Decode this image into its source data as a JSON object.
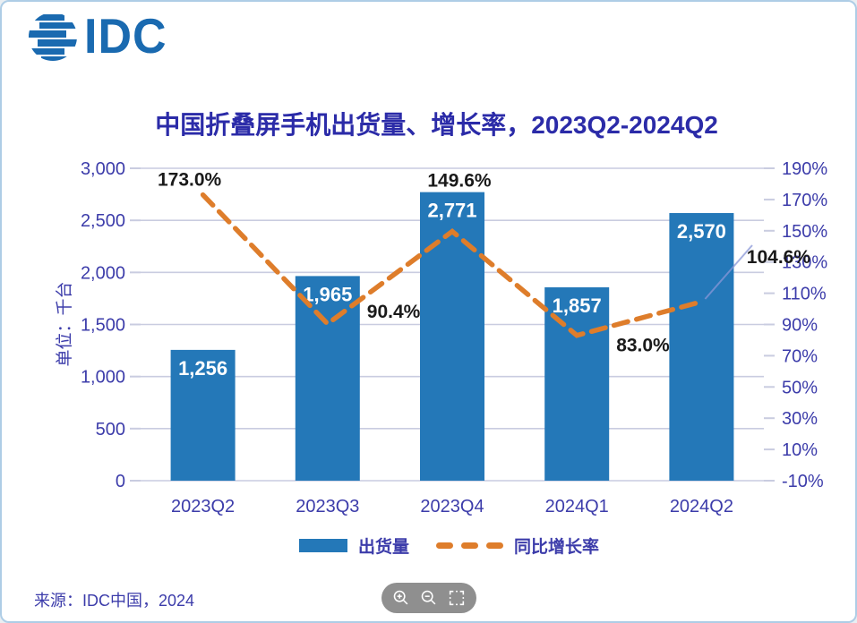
{
  "brand": {
    "logo_text": "IDC",
    "color": "#1a6ab0"
  },
  "title": "中国折叠屏手机出货量、增长率，2023Q2-2024Q2",
  "chart_data": {
    "type": "bar",
    "title": "中国折叠屏手机出货量、增长率，2023Q2-2024Q2",
    "categories": [
      "2023Q2",
      "2023Q3",
      "2023Q4",
      "2024Q1",
      "2024Q2"
    ],
    "series": [
      {
        "name": "出货量",
        "type": "bar",
        "axis": "left",
        "values": [
          1256,
          1965,
          2771,
          1857,
          2570
        ],
        "labels": [
          "1,256",
          "1,965",
          "2,771",
          "1,857",
          "2,570"
        ],
        "color": "#2478b8"
      },
      {
        "name": "同比增长率",
        "type": "line",
        "axis": "right",
        "style": "dashed",
        "values": [
          173.0,
          90.4,
          149.6,
          83.0,
          104.6
        ],
        "labels": [
          "173.0%",
          "90.4%",
          "149.6%",
          "83.0%",
          "104.6%"
        ],
        "color": "#de7d2b"
      }
    ],
    "left_axis": {
      "label": "单位：千台",
      "min": 0,
      "max": 3000,
      "tick_step": 500,
      "ticks": [
        "0",
        "500",
        "1,000",
        "1,500",
        "2,000",
        "2,500",
        "3,000"
      ]
    },
    "right_axis": {
      "min": -10,
      "max": 190,
      "tick_step": 20,
      "ticks": [
        "-10%",
        "10%",
        "30%",
        "50%",
        "70%",
        "90%",
        "110%",
        "130%",
        "150%",
        "170%",
        "190%"
      ]
    },
    "grid": true,
    "legend_position": "bottom"
  },
  "legend": {
    "items": [
      {
        "label": "出货量",
        "swatch": "bar"
      },
      {
        "label": "同比增长率",
        "swatch": "dashed-line"
      }
    ]
  },
  "source": "来源：IDC中国，2024",
  "toolbar": {
    "buttons": [
      {
        "name": "zoom-in"
      },
      {
        "name": "zoom-out"
      },
      {
        "name": "fit-screen"
      }
    ]
  },
  "colors": {
    "bar": "#2478b8",
    "line": "#de7d2b",
    "axis_text": "#3c3caa",
    "title_text": "#2b2ba8",
    "gridline": "#c9cce0",
    "bar_label": "#ffffff",
    "line_label": "#1a1a1a",
    "leader_line": "#8a97d8"
  }
}
